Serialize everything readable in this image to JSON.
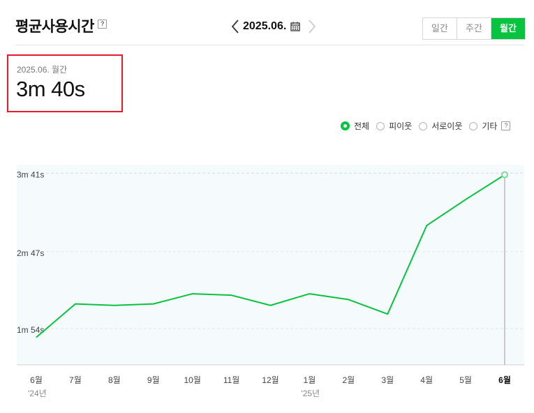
{
  "header": {
    "title": "평균사용시간",
    "help_label": "?",
    "date": "2025.06.",
    "tabs": [
      {
        "label": "일간",
        "active": false
      },
      {
        "label": "주간",
        "active": false
      },
      {
        "label": "월간",
        "active": true
      }
    ]
  },
  "summary": {
    "period_label": "2025.06. 월간",
    "value": "3m 40s"
  },
  "legend": {
    "items": [
      {
        "label": "전체",
        "checked": true
      },
      {
        "label": "피이웃",
        "checked": false
      },
      {
        "label": "서로이웃",
        "checked": false
      },
      {
        "label": "기타",
        "checked": false
      }
    ],
    "help_label": "?"
  },
  "colors": {
    "accent": "#08c33f",
    "highlight_box": "#e8192c",
    "plot_bg": "#f5fafd"
  },
  "chart_data": {
    "type": "line",
    "categories": [
      "6월",
      "7월",
      "8월",
      "9월",
      "10월",
      "11월",
      "12월",
      "1월",
      "2월",
      "3월",
      "4월",
      "5월",
      "6월"
    ],
    "year_labels": [
      {
        "index": 0,
        "label": "'24년"
      },
      {
        "index": 7,
        "label": "'25년"
      }
    ],
    "highlight_index": 12,
    "y_unit": "seconds",
    "y_ticks": [
      {
        "value": 114,
        "label": "1m 54s"
      },
      {
        "value": 167,
        "label": "2m 47s"
      },
      {
        "value": 221,
        "label": "3m 41s"
      }
    ],
    "ylim": [
      89,
      227
    ],
    "series": [
      {
        "values": [
          108,
          131,
          130,
          131,
          138,
          137,
          130,
          138,
          134,
          124,
          185,
          203,
          220
        ]
      }
    ],
    "grid": true
  }
}
